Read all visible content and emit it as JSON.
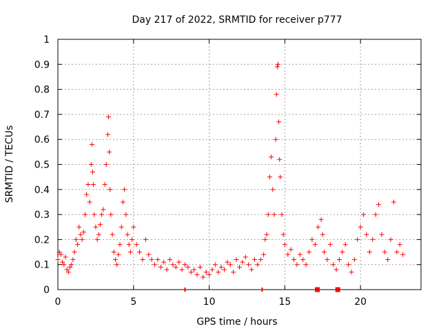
{
  "chart_data": {
    "type": "scatter",
    "title": "Day 217 of 2022, SRMTID for receiver p777",
    "xlabel": "GPS time / hours",
    "ylabel": "SRMTID / TECUs",
    "xlim": [
      0,
      24
    ],
    "ylim": [
      0,
      1
    ],
    "xticks": [
      0,
      5,
      10,
      15,
      20
    ],
    "xtick_labels": [
      "0",
      "5",
      "10",
      "15",
      "20"
    ],
    "yticks": [
      0,
      0.1,
      0.2,
      0.3,
      0.4,
      0.5,
      0.6,
      0.7,
      0.8,
      0.9,
      1
    ],
    "ytick_labels": [
      "0",
      "0.1",
      "0.2",
      "0.3",
      "0.4",
      "0.5",
      "0.6",
      "0.7",
      "0.8",
      "0.9",
      "1"
    ],
    "grid": true,
    "marker": "+",
    "color": "#ff0000",
    "series": [
      {
        "name": "SRMTID",
        "x": [
          0.0,
          0.1,
          0.2,
          0.3,
          0.4,
          0.5,
          0.6,
          0.7,
          0.8,
          0.9,
          1.0,
          1.1,
          1.2,
          1.3,
          1.4,
          1.5,
          1.6,
          1.7,
          1.8,
          1.9,
          2.0,
          2.1,
          2.2,
          2.25,
          2.3,
          2.35,
          2.4,
          2.5,
          2.6,
          2.7,
          2.8,
          2.9,
          3.0,
          3.1,
          3.2,
          3.3,
          3.35,
          3.4,
          3.45,
          3.5,
          3.6,
          3.7,
          3.8,
          3.9,
          4.0,
          4.1,
          4.2,
          4.3,
          4.4,
          4.5,
          4.6,
          4.7,
          4.8,
          4.9,
          5.0,
          5.2,
          5.4,
          5.6,
          5.8,
          6.0,
          6.2,
          6.4,
          6.6,
          6.8,
          7.0,
          7.2,
          7.4,
          7.6,
          7.8,
          8.0,
          8.2,
          8.4,
          8.6,
          8.8,
          9.0,
          9.2,
          9.4,
          9.6,
          9.8,
          10.0,
          10.2,
          10.4,
          10.6,
          10.8,
          11.0,
          11.2,
          11.4,
          11.6,
          11.8,
          12.0,
          12.2,
          12.4,
          12.6,
          12.8,
          13.0,
          13.2,
          13.4,
          13.6,
          13.7,
          13.8,
          13.9,
          14.0,
          14.1,
          14.2,
          14.3,
          14.4,
          14.45,
          14.5,
          14.55,
          14.6,
          14.65,
          14.7,
          14.8,
          14.9,
          15.0,
          15.2,
          15.4,
          15.6,
          15.8,
          16.0,
          16.2,
          16.4,
          16.6,
          16.8,
          17.0,
          17.2,
          17.4,
          17.5,
          17.6,
          17.8,
          18.0,
          18.2,
          18.4,
          18.6,
          18.8,
          19.0,
          19.2,
          19.4,
          19.6,
          19.8,
          20.0,
          20.2,
          20.4,
          20.6,
          20.8,
          21.0,
          21.2,
          21.4,
          21.6,
          21.8,
          22.0,
          22.2,
          22.4,
          22.6,
          22.8
        ],
        "y": [
          0.12,
          0.15,
          0.14,
          0.11,
          0.1,
          0.13,
          0.08,
          0.07,
          0.09,
          0.1,
          0.12,
          0.15,
          0.2,
          0.18,
          0.25,
          0.22,
          0.2,
          0.23,
          0.3,
          0.38,
          0.42,
          0.35,
          0.5,
          0.58,
          0.47,
          0.42,
          0.3,
          0.25,
          0.2,
          0.22,
          0.26,
          0.3,
          0.32,
          0.42,
          0.5,
          0.62,
          0.69,
          0.55,
          0.4,
          0.3,
          0.22,
          0.15,
          0.12,
          0.1,
          0.14,
          0.18,
          0.25,
          0.35,
          0.4,
          0.3,
          0.22,
          0.18,
          0.15,
          0.2,
          0.25,
          0.18,
          0.15,
          0.12,
          0.2,
          0.14,
          0.12,
          0.1,
          0.12,
          0.09,
          0.11,
          0.08,
          0.12,
          0.1,
          0.09,
          0.11,
          0.08,
          0.1,
          0.09,
          0.07,
          0.08,
          0.06,
          0.09,
          0.05,
          0.07,
          0.06,
          0.08,
          0.1,
          0.07,
          0.09,
          0.08,
          0.11,
          0.1,
          0.07,
          0.12,
          0.09,
          0.11,
          0.13,
          0.1,
          0.08,
          0.12,
          0.1,
          0.12,
          0.14,
          0.2,
          0.22,
          0.3,
          0.45,
          0.53,
          0.4,
          0.3,
          0.6,
          0.78,
          0.89,
          0.9,
          0.67,
          0.52,
          0.45,
          0.3,
          0.22,
          0.18,
          0.14,
          0.16,
          0.12,
          0.1,
          0.14,
          0.12,
          0.1,
          0.15,
          0.2,
          0.18,
          0.25,
          0.28,
          0.22,
          0.15,
          0.12,
          0.18,
          0.1,
          0.08,
          0.12,
          0.15,
          0.18,
          0.1,
          0.07,
          0.12,
          0.2,
          0.25,
          0.3,
          0.22,
          0.15,
          0.2,
          0.3,
          0.34,
          0.22,
          0.15,
          0.12,
          0.2,
          0.35,
          0.15,
          0.18,
          0.14
        ]
      }
    ],
    "x_axis_markers": [
      {
        "x": 8.4,
        "shape": "tick"
      },
      {
        "x": 13.5,
        "shape": "tick"
      },
      {
        "x": 17.15,
        "shape": "square"
      },
      {
        "x": 18.5,
        "shape": "square"
      }
    ]
  }
}
